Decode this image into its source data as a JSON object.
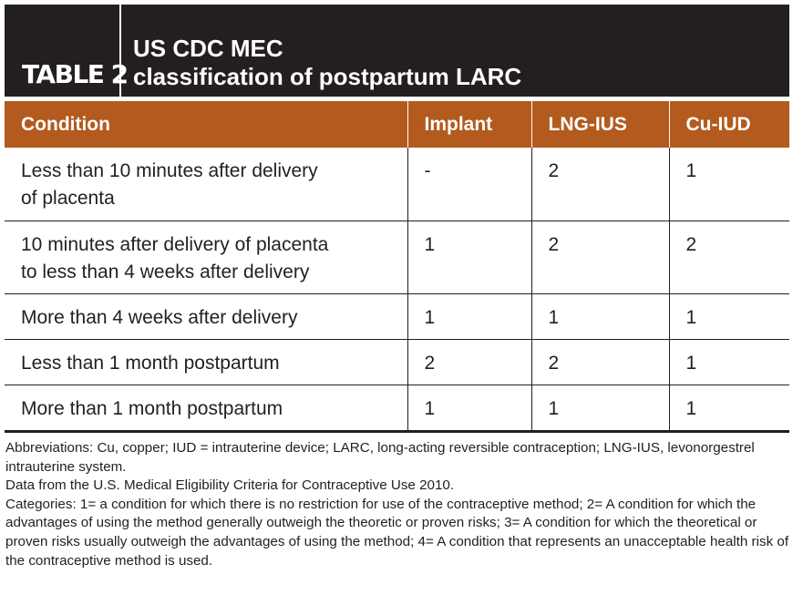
{
  "header": {
    "table_label": "TABLE 2",
    "title_line1": "US CDC MEC",
    "title_line2": "classification of postpartum LARC"
  },
  "table": {
    "columns": [
      "Condition",
      "Implant",
      "LNG-IUS",
      "Cu-IUD"
    ],
    "rows": [
      {
        "condition_line1": "Less than 10 minutes after delivery",
        "condition_line2": "of placenta",
        "implant": "-",
        "lng_ius": "2",
        "cu_iud": "1"
      },
      {
        "condition_line1": "10 minutes after delivery of placenta",
        "condition_line2": "to less than 4 weeks after delivery",
        "implant": "1",
        "lng_ius": "2",
        "cu_iud": "2"
      },
      {
        "condition_line1": "More than 4 weeks after delivery",
        "implant": "1",
        "lng_ius": "1",
        "cu_iud": "1"
      },
      {
        "condition_line1": "Less than 1 month postpartum",
        "implant": "2",
        "lng_ius": "2",
        "cu_iud": "1"
      },
      {
        "condition_line1": "More than 1 month postpartum",
        "implant": "1",
        "lng_ius": "1",
        "cu_iud": "1"
      }
    ]
  },
  "notes": {
    "abbreviations": "Abbreviations: Cu, copper; IUD = intrauterine device; LARC, long-acting reversible contraception; LNG-IUS, levonorgestrel intrauterine system.",
    "source": "Data from the U.S. Medical Eligibility Criteria for Contraceptive Use 2010.",
    "categories": "Categories: 1= a condition for which there is no restriction for use of the contraceptive method; 2= A condition for which the advantages of using the method generally outweigh the theoretic or proven risks; 3= A condition for which the theoretical or proven risks usually outweigh the advantages of using the method; 4= A condition that represents an unacceptable health risk of the contraceptive method is used."
  },
  "colors": {
    "header_bg": "#231f20",
    "column_header_bg": "#b35a1f",
    "text": "#231f20"
  }
}
